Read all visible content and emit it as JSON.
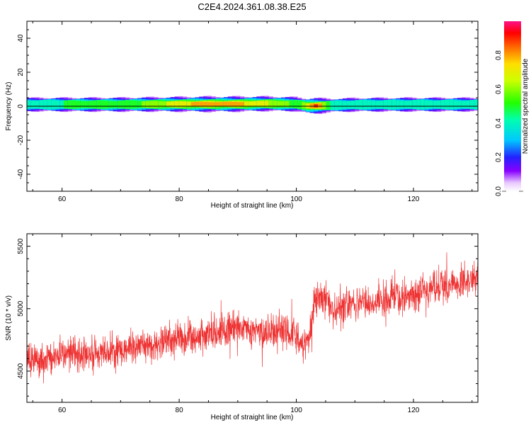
{
  "title": "C2E4.2024.361.08.38.E25",
  "chart_data": [
    {
      "type": "heatmap",
      "xlabel": "Height of straight line (km)",
      "ylabel": "Frequency (Hz)",
      "xlim": [
        54,
        131
      ],
      "ylim": [
        -50,
        50
      ],
      "xticks": [
        60,
        80,
        100,
        120
      ],
      "yticks": [
        -40,
        -20,
        0,
        20,
        40
      ],
      "grid": false,
      "colorbar": {
        "label": "Normalized spectral amplitude",
        "range": [
          0.0,
          1.0
        ],
        "ticks": [
          "0.0",
          "0.2",
          "0.4",
          "0.6",
          "0.8"
        ],
        "tick_values": [
          0.0,
          0.2,
          0.4,
          0.6,
          0.8
        ]
      },
      "band": {
        "center_hz": [
          [
            54,
            1.0
          ],
          [
            60,
            1.0
          ],
          [
            70,
            1.0
          ],
          [
            80,
            1.2
          ],
          [
            90,
            1.3
          ],
          [
            95,
            1.5
          ],
          [
            100,
            1.2
          ],
          [
            102,
            0.2
          ],
          [
            104,
            0.3
          ],
          [
            110,
            0.9
          ],
          [
            120,
            1.0
          ],
          [
            131,
            1.0
          ]
        ],
        "peak_amplitude": [
          [
            54,
            0.45
          ],
          [
            60,
            0.5
          ],
          [
            70,
            0.55
          ],
          [
            75,
            0.62
          ],
          [
            80,
            0.75
          ],
          [
            85,
            0.88
          ],
          [
            90,
            0.82
          ],
          [
            95,
            0.7
          ],
          [
            99,
            0.6
          ],
          [
            101,
            0.55
          ],
          [
            103,
            0.97
          ],
          [
            104,
            0.85
          ],
          [
            106,
            0.4
          ],
          [
            110,
            0.45
          ],
          [
            120,
            0.5
          ],
          [
            131,
            0.45
          ]
        ]
      }
    },
    {
      "type": "line",
      "xlabel": "Height of straight line (km)",
      "ylabel": "SNR (10 * v/v)",
      "xlim": [
        54,
        131
      ],
      "ylim": [
        4250,
        5600
      ],
      "xticks": [
        60,
        80,
        100,
        120
      ],
      "yticks": [
        4500,
        5000,
        5500
      ],
      "grid": false,
      "series_color": "#ee3333",
      "trend": [
        [
          54,
          4580
        ],
        [
          60,
          4620
        ],
        [
          70,
          4670
        ],
        [
          80,
          4760
        ],
        [
          90,
          4830
        ],
        [
          98,
          4820
        ],
        [
          100,
          4770
        ],
        [
          102,
          4700
        ],
        [
          103,
          5050
        ],
        [
          104,
          5120
        ],
        [
          106,
          5000
        ],
        [
          110,
          5030
        ],
        [
          120,
          5120
        ],
        [
          131,
          5250
        ]
      ],
      "noise_amplitude": 90
    }
  ],
  "colors": {
    "axis": "#000000",
    "line": "#ee3333"
  }
}
